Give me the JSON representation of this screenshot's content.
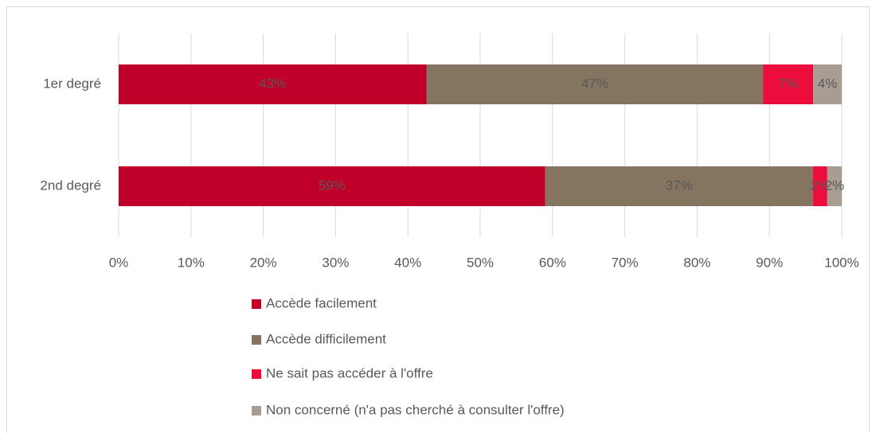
{
  "chart_data": {
    "type": "bar",
    "orientation": "horizontal",
    "stacked": "percent",
    "categories": [
      "1er degré",
      "2nd degré"
    ],
    "series": [
      {
        "name": "Accède facilement",
        "color": "#c00028",
        "values": [
          43,
          59
        ],
        "value_labels": [
          "43%",
          "59%"
        ]
      },
      {
        "name": "Accède difficilement",
        "color": "#857560",
        "values": [
          47,
          37
        ],
        "value_labels": [
          "47%",
          "37%"
        ]
      },
      {
        "name": "Ne sait pas accéder à l'offre",
        "color": "#ec0d3c",
        "values": [
          7,
          2
        ],
        "value_labels": [
          "7%",
          "2%"
        ]
      },
      {
        "name": "Non concerné (n'a pas cherché à consulter l'offre)",
        "color": "#a89c93",
        "values": [
          4,
          2
        ],
        "value_labels": [
          "4%",
          "2%"
        ]
      }
    ],
    "xlim": [
      0,
      100
    ],
    "xticks": [
      {
        "value": 0,
        "label": "0%"
      },
      {
        "value": 10,
        "label": "10%"
      },
      {
        "value": 20,
        "label": "20%"
      },
      {
        "value": 30,
        "label": "30%"
      },
      {
        "value": 40,
        "label": "40%"
      },
      {
        "value": 50,
        "label": "50%"
      },
      {
        "value": 60,
        "label": "60%"
      },
      {
        "value": 70,
        "label": "70%"
      },
      {
        "value": 80,
        "label": "80%"
      },
      {
        "value": 90,
        "label": "90%"
      },
      {
        "value": 100,
        "label": "100%"
      }
    ],
    "grid": true,
    "legend": "bottom"
  }
}
